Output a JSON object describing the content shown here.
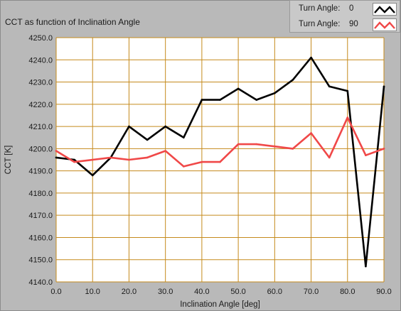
{
  "legend": {
    "items": [
      {
        "label": "Turn Angle:",
        "value": "0",
        "color": "#000000"
      },
      {
        "label": "Turn Angle:",
        "value": "90",
        "color": "#f04848"
      }
    ]
  },
  "chart_data": {
    "type": "line",
    "title": "CCT as function of Inclination Angle",
    "xlabel": "Inclination Angle [deg]",
    "ylabel": "CCT [K]",
    "xlim": [
      0,
      90
    ],
    "ylim": [
      4140,
      4250
    ],
    "xticks": [
      "0.0",
      "10.0",
      "20.0",
      "30.0",
      "40.0",
      "50.0",
      "60.0",
      "70.0",
      "80.0",
      "90.0"
    ],
    "yticks": [
      "4140.0",
      "4150.0",
      "4160.0",
      "4170.0",
      "4180.0",
      "4190.0",
      "4200.0",
      "4210.0",
      "4220.0",
      "4230.0",
      "4240.0",
      "4250.0"
    ],
    "grid": true,
    "grid_color": "#c58a1c",
    "plot_background": "#ffffff",
    "legend_position": "top-right",
    "x": [
      0,
      5,
      10,
      15,
      20,
      25,
      30,
      35,
      40,
      45,
      50,
      55,
      60,
      65,
      70,
      75,
      80,
      85,
      90
    ],
    "series": [
      {
        "name": "Turn Angle: 0",
        "color": "#000000",
        "values": [
          4196,
          4195,
          4188,
          4196,
          4210,
          4204,
          4210,
          4205,
          4222,
          4222,
          4227,
          4222,
          4225,
          4231,
          4241,
          4228,
          4226,
          4147,
          4228
        ]
      },
      {
        "name": "Turn Angle: 90",
        "color": "#f04848",
        "values": [
          4199,
          4194,
          4195,
          4196,
          4195,
          4196,
          4199,
          4192,
          4194,
          4194,
          4202,
          4202,
          4201,
          4200,
          4207,
          4196,
          4214,
          4197,
          4200
        ]
      }
    ]
  }
}
